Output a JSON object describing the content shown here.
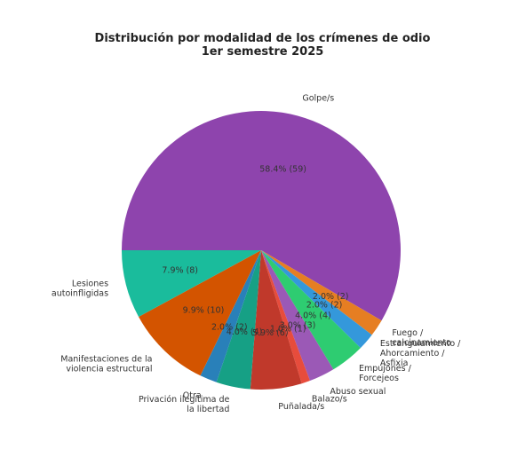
{
  "chart_data": {
    "type": "pie",
    "title_lines": [
      "Distribución por modalidad de los crímenes de odio",
      "1er semestre 2025"
    ],
    "start_angle_deg": 180,
    "direction": "clockwise",
    "slices": [
      {
        "label": [
          "Golpe/s"
        ],
        "value": 59,
        "percent_label": "58.4% (59)",
        "color": "#8e44ad"
      },
      {
        "label": [
          "Fuego /",
          "calcinamiento"
        ],
        "value": 2,
        "percent_label": "2.0% (2)",
        "color": "#e67e22"
      },
      {
        "label": [
          "Estrangulamiento /",
          "Ahorcamiento /",
          "Asfixia"
        ],
        "value": 2,
        "percent_label": "2.0% (2)",
        "color": "#3498db"
      },
      {
        "label": [
          "Empujones /",
          "Forcejeos"
        ],
        "value": 4,
        "percent_label": "4.0% (4)",
        "color": "#2ecc71"
      },
      {
        "label": [
          "Abuso sexual"
        ],
        "value": 3,
        "percent_label": "3.0% (3)",
        "color": "#9b59b6"
      },
      {
        "label": [
          "Balazo/s"
        ],
        "value": 1,
        "percent_label": "1.0% (1)",
        "color": "#e74c3c"
      },
      {
        "label": [
          "Puñalada/s"
        ],
        "value": 6,
        "percent_label": "5.9% (6)",
        "color": "#c0392b"
      },
      {
        "label": [
          "Privación ilegítima de",
          "la libertad"
        ],
        "value": 4,
        "percent_label": "4.0% (4)",
        "color": "#16a085"
      },
      {
        "label": [
          "Otra"
        ],
        "value": 2,
        "percent_label": "2.0% (2)",
        "color": "#2980b9"
      },
      {
        "label": [
          "Manifestaciones de la",
          "violencia estructural"
        ],
        "value": 10,
        "percent_label": "9.9% (10)",
        "color": "#d35400"
      },
      {
        "label": [
          "Lesiones",
          "autoinfligidas"
        ],
        "value": 8,
        "percent_label": "7.9% (8)",
        "color": "#1abc9c"
      }
    ]
  }
}
